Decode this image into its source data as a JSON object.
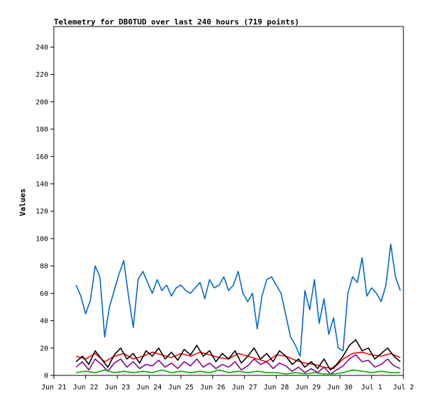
{
  "chart_data": {
    "type": "line",
    "title": "Telemetry for DB0TUD over last 240 hours (719 points)",
    "xlabel": "",
    "ylabel": "Values",
    "ylim": [
      0,
      255
    ],
    "yticks": [
      0,
      20,
      40,
      60,
      80,
      100,
      120,
      140,
      160,
      180,
      200,
      220,
      240
    ],
    "x_day_range": [
      0,
      11
    ],
    "xticks": [
      {
        "label": "Jun 21",
        "day": 0
      },
      {
        "label": "Jun 22",
        "day": 1
      },
      {
        "label": "Jun 23",
        "day": 2
      },
      {
        "label": "Jun 24",
        "day": 3
      },
      {
        "label": "Jun 25",
        "day": 4
      },
      {
        "label": "Jun 26",
        "day": 5
      },
      {
        "label": "Jun 27",
        "day": 6
      },
      {
        "label": "Jun 28",
        "day": 7
      },
      {
        "label": "Jun 29",
        "day": 8
      },
      {
        "label": "Jun 30",
        "day": 9
      },
      {
        "label": "Jul 1",
        "day": 10
      },
      {
        "label": "Jul 2",
        "day": 11
      }
    ],
    "grid": false,
    "series": [
      {
        "color": "#0066cc",
        "x": [
          0.7,
          0.85,
          1.0,
          1.15,
          1.3,
          1.45,
          1.6,
          1.75,
          1.9,
          2.05,
          2.2,
          2.35,
          2.5,
          2.65,
          2.8,
          2.95,
          3.1,
          3.25,
          3.4,
          3.55,
          3.7,
          3.85,
          4.0,
          4.15,
          4.3,
          4.45,
          4.6,
          4.75,
          4.9,
          5.05,
          5.2,
          5.35,
          5.5,
          5.65,
          5.8,
          5.95,
          6.1,
          6.25,
          6.4,
          6.55,
          6.7,
          6.85,
          7.0,
          7.15,
          7.3,
          7.45,
          7.6,
          7.75,
          7.9,
          8.05,
          8.2,
          8.35,
          8.5,
          8.65,
          8.8,
          8.95,
          9.1,
          9.25,
          9.4,
          9.55,
          9.7,
          9.85,
          10.0,
          10.15,
          10.3,
          10.45,
          10.6,
          10.75,
          10.9
        ],
        "y": [
          66,
          58,
          45,
          55,
          80,
          72,
          28,
          50,
          62,
          74,
          84,
          58,
          35,
          70,
          76,
          68,
          60,
          70,
          62,
          66,
          58,
          64,
          66,
          62,
          60,
          64,
          68,
          56,
          70,
          64,
          66,
          72,
          62,
          66,
          76,
          60,
          54,
          60,
          34,
          58,
          70,
          72,
          66,
          60,
          44,
          28,
          22,
          14,
          62,
          48,
          70,
          38,
          56,
          30,
          42,
          20,
          18,
          60,
          72,
          68,
          86,
          58,
          64,
          60,
          54,
          66,
          96,
          72,
          62
        ]
      },
      {
        "color": "#ff0000",
        "x": [
          0.7,
          1.0,
          1.3,
          1.6,
          1.9,
          2.2,
          2.5,
          2.8,
          3.1,
          3.4,
          3.7,
          4.0,
          4.3,
          4.6,
          4.9,
          5.2,
          5.5,
          5.8,
          6.1,
          6.4,
          6.7,
          7.0,
          7.3,
          7.6,
          7.9,
          8.2,
          8.5,
          8.8,
          9.1,
          9.4,
          9.7,
          10.0,
          10.3,
          10.6,
          10.9
        ],
        "y": [
          14,
          12,
          16,
          10,
          14,
          16,
          12,
          14,
          17,
          15,
          13,
          16,
          14,
          17,
          15,
          13,
          12,
          16,
          14,
          12,
          10,
          15,
          14,
          11,
          9,
          8,
          6,
          5,
          12,
          16,
          17,
          15,
          14,
          16,
          13
        ]
      },
      {
        "color": "#000000",
        "x": [
          0.7,
          0.9,
          1.1,
          1.3,
          1.5,
          1.7,
          1.9,
          2.1,
          2.3,
          2.5,
          2.7,
          2.9,
          3.1,
          3.3,
          3.5,
          3.7,
          3.9,
          4.1,
          4.3,
          4.5,
          4.7,
          4.9,
          5.1,
          5.3,
          5.5,
          5.7,
          5.9,
          6.1,
          6.3,
          6.5,
          6.7,
          6.9,
          7.1,
          7.3,
          7.5,
          7.7,
          7.9,
          8.1,
          8.3,
          8.5,
          8.7,
          8.9,
          9.1,
          9.3,
          9.5,
          9.7,
          9.9,
          10.1,
          10.3,
          10.5,
          10.7,
          10.9
        ],
        "y": [
          10,
          14,
          8,
          18,
          12,
          6,
          15,
          20,
          12,
          16,
          9,
          18,
          14,
          20,
          12,
          17,
          11,
          19,
          15,
          22,
          14,
          18,
          10,
          16,
          12,
          18,
          9,
          14,
          20,
          12,
          16,
          10,
          18,
          14,
          8,
          12,
          6,
          10,
          5,
          12,
          4,
          8,
          14,
          22,
          26,
          18,
          20,
          12,
          16,
          20,
          14,
          10
        ]
      },
      {
        "color": "#880088",
        "x": [
          0.7,
          0.9,
          1.1,
          1.3,
          1.5,
          1.7,
          1.9,
          2.1,
          2.3,
          2.5,
          2.7,
          2.9,
          3.1,
          3.3,
          3.5,
          3.7,
          3.9,
          4.1,
          4.3,
          4.5,
          4.7,
          4.9,
          5.1,
          5.3,
          5.5,
          5.7,
          5.9,
          6.1,
          6.3,
          6.5,
          6.7,
          6.9,
          7.1,
          7.3,
          7.5,
          7.7,
          7.9,
          8.1,
          8.3,
          8.5,
          8.7,
          8.9,
          9.1,
          9.3,
          9.5,
          9.7,
          9.9,
          10.1,
          10.3,
          10.5,
          10.7,
          10.9
        ],
        "y": [
          6,
          10,
          4,
          12,
          8,
          3,
          9,
          12,
          6,
          10,
          5,
          8,
          7,
          11,
          6,
          9,
          5,
          10,
          7,
          12,
          6,
          9,
          5,
          8,
          6,
          10,
          4,
          7,
          12,
          8,
          10,
          5,
          9,
          7,
          3,
          6,
          2,
          5,
          2,
          6,
          1,
          4,
          7,
          12,
          15,
          10,
          11,
          6,
          8,
          12,
          7,
          5
        ]
      },
      {
        "color": "#00aa00",
        "x": [
          0.7,
          1.0,
          1.3,
          1.6,
          1.9,
          2.2,
          2.5,
          2.8,
          3.1,
          3.4,
          3.7,
          4.0,
          4.3,
          4.6,
          4.9,
          5.2,
          5.5,
          5.8,
          6.1,
          6.4,
          6.7,
          7.0,
          7.3,
          7.6,
          7.9,
          8.2,
          8.5,
          8.8,
          9.1,
          9.4,
          9.7,
          10.0,
          10.3,
          10.6,
          10.9
        ],
        "y": [
          2,
          3,
          2,
          4,
          2,
          3,
          2,
          3,
          2,
          4,
          2,
          3,
          2,
          3,
          2,
          4,
          2,
          3,
          2,
          3,
          2,
          2,
          1,
          2,
          1,
          2,
          1,
          1,
          2,
          4,
          3,
          2,
          3,
          2,
          2
        ]
      }
    ]
  }
}
